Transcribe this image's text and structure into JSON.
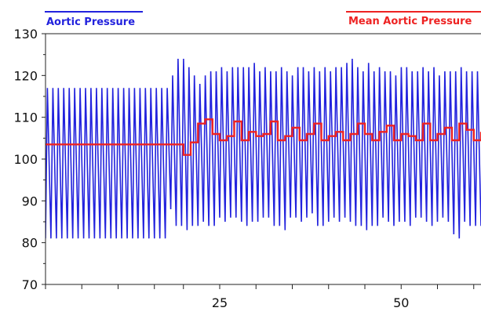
{
  "chart_data": {
    "type": "line",
    "title": "",
    "xlabel": "",
    "ylabel": "",
    "xlim": [
      1,
      61
    ],
    "ylim": [
      70,
      130
    ],
    "y_ticks": [
      70,
      80,
      90,
      100,
      110,
      120,
      130
    ],
    "x_tick_labels": [
      {
        "x": 25,
        "label": "25"
      },
      {
        "x": 50,
        "label": "50"
      }
    ],
    "x_minor_ticks": [
      1,
      6,
      11,
      16,
      20,
      25,
      30,
      35,
      40,
      45,
      50,
      55,
      60
    ],
    "grid": false,
    "legend": "top",
    "series": [
      {
        "name": "Aortic Pressure",
        "color": "#2222dd",
        "cycle_peaks": [
          117,
          117,
          117,
          117,
          117,
          117,
          117,
          117,
          117,
          117,
          117,
          117,
          117,
          117,
          117,
          117,
          117,
          117,
          117,
          117,
          117,
          117,
          117,
          120,
          124,
          124,
          122,
          120,
          118,
          120,
          121,
          121,
          122,
          121,
          122,
          122,
          122,
          122,
          123,
          121,
          122,
          121,
          121,
          122,
          121,
          120,
          122,
          122,
          121,
          122,
          121,
          122,
          121,
          122,
          122,
          123,
          124,
          122,
          121,
          123,
          121,
          122,
          121,
          121,
          120,
          122,
          122,
          121,
          121,
          122,
          121,
          122,
          120,
          121,
          121,
          121,
          122,
          121,
          121,
          121
        ],
        "cycle_troughs": [
          81,
          81,
          81,
          81,
          81,
          81,
          81,
          81,
          81,
          81,
          81,
          81,
          81,
          81,
          81,
          81,
          81,
          81,
          81,
          81,
          81,
          81,
          81,
          88,
          84,
          84,
          83,
          84,
          84,
          85,
          84,
          84,
          86,
          85,
          86,
          86,
          85,
          84,
          85,
          85,
          86,
          86,
          84,
          84,
          83,
          86,
          86,
          85,
          86,
          87,
          84,
          84,
          85,
          86,
          85,
          86,
          85,
          84,
          84,
          83,
          84,
          84,
          86,
          85,
          84,
          85,
          85,
          84,
          86,
          86,
          85,
          84,
          85,
          86,
          85,
          82,
          81,
          85,
          84,
          84
        ]
      },
      {
        "name": "Mean Aortic Pressure",
        "color": "#ee2222",
        "x": [
          1,
          3,
          5,
          7,
          9,
          11,
          13,
          15,
          17,
          19,
          20,
          21,
          22,
          23,
          24,
          25,
          26,
          27,
          28,
          29,
          30,
          31,
          32,
          33,
          34,
          35,
          36,
          37,
          38,
          39,
          40,
          41,
          42,
          43,
          44,
          45,
          46,
          47,
          48,
          49,
          50,
          51,
          52,
          53,
          54,
          55,
          56,
          57,
          58,
          59,
          60,
          61
        ],
        "values": [
          103.5,
          103.5,
          103.5,
          103.5,
          103.5,
          103.5,
          103.5,
          103.5,
          103.5,
          103.5,
          101,
          104,
          108.5,
          109.5,
          106,
          104.5,
          105.5,
          109,
          104.5,
          106.5,
          105.5,
          106,
          109,
          104.5,
          105.5,
          107.5,
          104.5,
          106,
          108.5,
          104.5,
          105.5,
          106.5,
          104.5,
          106,
          108.5,
          106,
          104.5,
          106.5,
          108,
          104.5,
          106,
          105.5,
          104.5,
          108.5,
          104.5,
          106,
          107.5,
          104.5,
          108.5,
          107,
          104.5,
          106.5
        ]
      }
    ]
  }
}
